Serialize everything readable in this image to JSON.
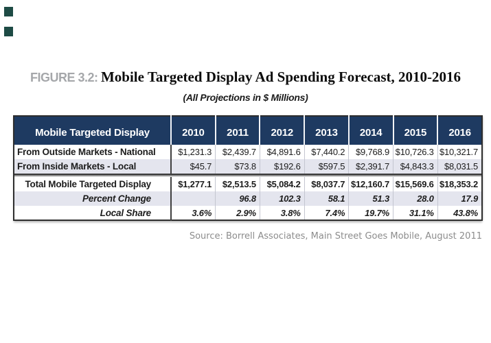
{
  "figure": {
    "label": "FIGURE 3.2:",
    "title": "Mobile Targeted Display Ad Spending Forecast, 2010-2016",
    "subtitle": "(All Projections in $ Millions)",
    "source": "Source: Borrell Associates, Main Street Goes Mobile, August 2011"
  },
  "colors": {
    "header_bg": "#1e3a61",
    "alt_row_bg": "#e4e5ee",
    "figure_label_gray": "#a5a7aa",
    "source_gray": "#8c8c8c",
    "corner_square_teal": "#1e4b45",
    "border_dark": "#2d2d2d"
  },
  "chart_data": {
    "type": "table",
    "title": "Mobile Targeted Display Ad Spending Forecast, 2010-2016",
    "subtitle": "(All Projections in $ Millions)",
    "figure_label": "FIGURE 3.2:",
    "source": "Source: Borrell Associates, Main Street Goes Mobile, August 2011",
    "units": "$ Millions",
    "columns": [
      "Mobile Targeted Display",
      "2010",
      "2011",
      "2012",
      "2013",
      "2014",
      "2015",
      "2016"
    ],
    "rows": [
      {
        "label": "From Outside Markets - National",
        "values": [
          "$1,231.3",
          "$2,439.7",
          "$4,891.6",
          "$7,440.2",
          "$9,768.9",
          "$10,726.3",
          "$10,321.7"
        ]
      },
      {
        "label": "From Inside Markets - Local",
        "values": [
          "$45.7",
          "$73.8",
          "$192.6",
          "$597.5",
          "$2,391.7",
          "$4,843.3",
          "$8,031.5"
        ]
      },
      {
        "label": "Total Mobile Targeted Display",
        "values": [
          "$1,277.1",
          "$2,513.5",
          "$5,084.2",
          "$8,037.7",
          "$12,160.7",
          "$15,569.6",
          "$18,353.2"
        ]
      },
      {
        "label": "Percent Change",
        "values": [
          "",
          "96.8",
          "102.3",
          "58.1",
          "51.3",
          "28.0",
          "17.9"
        ]
      },
      {
        "label": "Local Share",
        "values": [
          "3.6%",
          "2.9%",
          "3.8%",
          "7.4%",
          "19.7%",
          "31.1%",
          "43.8%"
        ]
      }
    ]
  }
}
